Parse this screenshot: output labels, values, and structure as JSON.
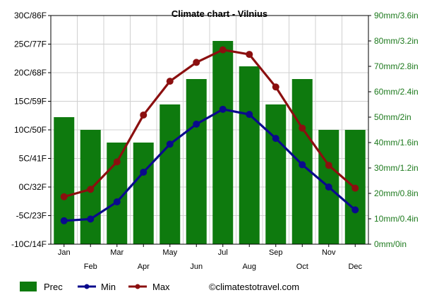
{
  "chart_data": {
    "type": "bar+line",
    "title": "Climate chart - Vilnius",
    "categories": [
      "Jan",
      "Feb",
      "Mar",
      "Apr",
      "May",
      "Jun",
      "Jul",
      "Aug",
      "Sep",
      "Oct",
      "Nov",
      "Dec"
    ],
    "series": [
      {
        "name": "Prec",
        "type": "bar",
        "axis": "right",
        "unit": "mm",
        "color": "#0e7a0e",
        "values": [
          50,
          45,
          40,
          40,
          55,
          65,
          80,
          70,
          55,
          65,
          45,
          45
        ]
      },
      {
        "name": "Min",
        "type": "line",
        "axis": "left",
        "unit": "C",
        "color": "#0a0a8c",
        "values": [
          -5.9,
          -5.6,
          -2.6,
          2.6,
          7.5,
          11,
          13.6,
          12.7,
          8.5,
          3.9,
          0,
          -4
        ]
      },
      {
        "name": "Max",
        "type": "line",
        "axis": "left",
        "unit": "C",
        "color": "#8b0f0f",
        "values": [
          -1.7,
          -0.4,
          4.4,
          12.6,
          18.5,
          21.8,
          24,
          23.2,
          17.5,
          10.3,
          3.8,
          -0.2
        ]
      }
    ],
    "y_left": {
      "min": -10,
      "max": 30,
      "ticks": [
        "30C/86F",
        "25C/77F",
        "20C/68F",
        "15C/59F",
        "10C/50F",
        "5C/41F",
        "0C/32F",
        "-5C/23F",
        "-10C/14F"
      ]
    },
    "y_right": {
      "min": 0,
      "max": 90,
      "ticks": [
        "90mm/3.6in",
        "80mm/3.2in",
        "70mm/2.8in",
        "60mm/2.4in",
        "50mm/2in",
        "40mm/1.6in",
        "30mm/1.2in",
        "20mm/0.8in",
        "10mm/0.4in",
        "0mm/0in"
      ]
    },
    "grid": true,
    "legend": "bottom-left",
    "legend_items": [
      "Prec",
      "Min",
      "Max"
    ],
    "credit": "©climatestotravel.com"
  }
}
